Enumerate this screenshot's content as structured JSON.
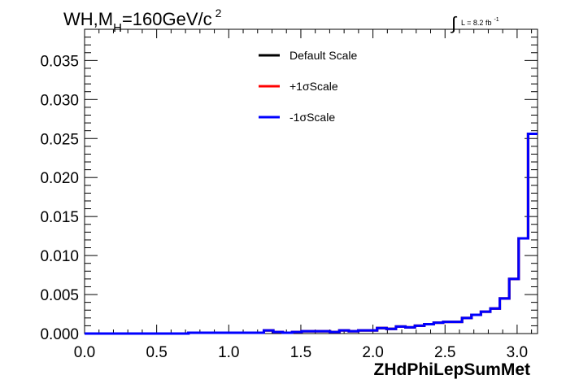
{
  "chart_data": {
    "type": "line",
    "title": "WH,M",
    "title_sub": "H",
    "title_tail": "=160GeV/c",
    "title_sup": "2",
    "lumi_label": "L = 8.2 fb",
    "lumi_sup": "-1",
    "xlabel": "ZHdPhiLepSumMet",
    "ylabel": "",
    "xlim": [
      0.0,
      3.1416
    ],
    "ylim": [
      0.0,
      0.039
    ],
    "x_ticks": [
      "0.0",
      "0.5",
      "1.0",
      "1.5",
      "2.0",
      "2.5",
      "3.0"
    ],
    "x_tick_values": [
      0.0,
      0.5,
      1.0,
      1.5,
      2.0,
      2.5,
      3.0
    ],
    "y_ticks": [
      "0.000",
      "0.005",
      "0.010",
      "0.015",
      "0.020",
      "0.025",
      "0.030",
      "0.035"
    ],
    "y_tick_values": [
      0.0,
      0.005,
      0.01,
      0.015,
      0.02,
      0.025,
      0.03,
      0.035
    ],
    "grid": false,
    "legend_position": "top-center",
    "bin_edges_count": 49,
    "series": [
      {
        "name": "Default Scale",
        "color": "#000000",
        "values": [
          0,
          0,
          0,
          0,
          0,
          0,
          0,
          0,
          0,
          0,
          0,
          0.0001,
          0.0001,
          0.0001,
          0.0001,
          0.0001,
          0.0001,
          0.0001,
          0.0001,
          0.0004,
          0.0002,
          0.0001,
          0.0002,
          0.0003,
          0.0003,
          0.0003,
          0.0002,
          0.0004,
          0.0003,
          0.0004,
          0.0004,
          0.0007,
          0.0006,
          0.0009,
          0.0008,
          0.001,
          0.0012,
          0.0014,
          0.0015,
          0.0015,
          0.002,
          0.0024,
          0.0028,
          0.0032,
          0.0045,
          0.007,
          0.0122,
          0.0256
        ]
      },
      {
        "name": "+1σScale",
        "color": "#ff0000",
        "values": [
          0,
          0,
          0,
          0,
          0,
          0,
          0,
          0,
          0,
          0,
          0,
          0.0001,
          0.0001,
          0.0001,
          0.0001,
          0.0001,
          0.0001,
          0.0001,
          0.0001,
          0.0004,
          0.0002,
          0.0001,
          0.0002,
          0.0003,
          0.0003,
          0.0003,
          0.0002,
          0.0004,
          0.0003,
          0.0004,
          0.0004,
          0.0007,
          0.0006,
          0.0009,
          0.0008,
          0.001,
          0.0012,
          0.0014,
          0.0015,
          0.0015,
          0.002,
          0.0024,
          0.0028,
          0.0032,
          0.0045,
          0.007,
          0.0122,
          0.0256
        ]
      },
      {
        "name": "-1σScale",
        "color": "#0000ff",
        "values": [
          0,
          0,
          0,
          0,
          0,
          0,
          0,
          0,
          0,
          0,
          0,
          0.0001,
          0.0001,
          0.0001,
          0.0001,
          0.0001,
          0.0001,
          0.0001,
          0.0001,
          0.0004,
          0.0002,
          0.0001,
          0.0002,
          0.0003,
          0.0003,
          0.0003,
          0.0002,
          0.0004,
          0.0003,
          0.0004,
          0.0004,
          0.0007,
          0.0006,
          0.0009,
          0.0008,
          0.001,
          0.0012,
          0.0014,
          0.0015,
          0.0015,
          0.002,
          0.0024,
          0.0028,
          0.0032,
          0.0045,
          0.007,
          0.0122,
          0.0256
        ]
      }
    ]
  }
}
